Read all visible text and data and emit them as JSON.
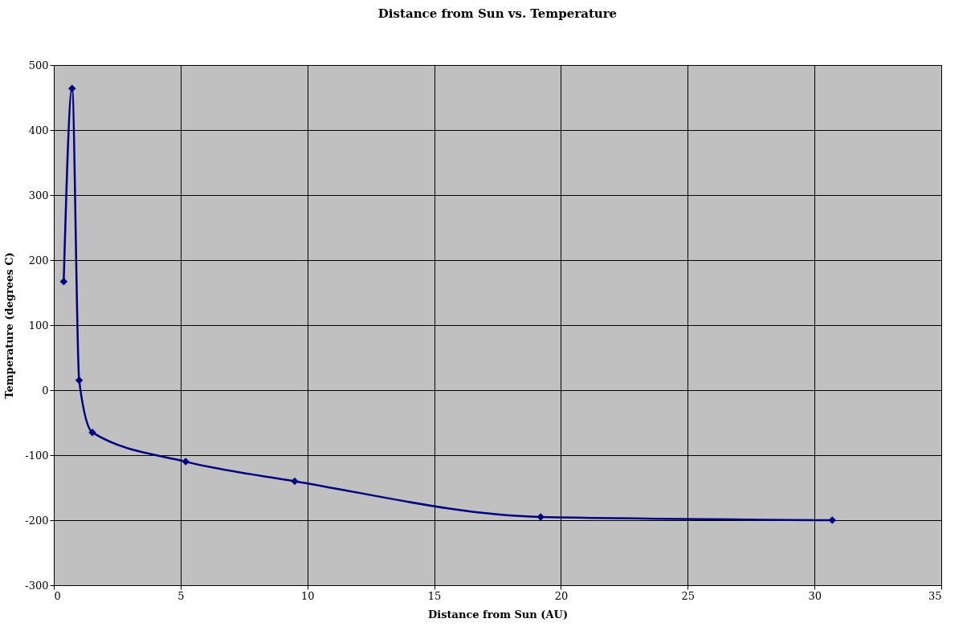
{
  "chart_data": {
    "type": "line",
    "title": "Distance from Sun vs. Temperature",
    "xlabel": "Distance from Sun (AU)",
    "ylabel": "Temperature (degrees C)",
    "x": [
      0.39,
      0.72,
      1.0,
      1.52,
      5.2,
      9.5,
      19.2,
      30.7
    ],
    "series": [
      {
        "color": "#000080",
        "values": [
          167,
          464,
          15,
          -65,
          -110,
          -140,
          -195,
          -200
        ]
      }
    ],
    "xlim": [
      0,
      35
    ],
    "xticks": [
      0,
      5,
      10,
      15,
      20,
      25,
      30,
      35
    ],
    "ylim": [
      -300,
      500
    ],
    "yticks": [
      -300,
      -200,
      -100,
      0,
      100,
      200,
      300,
      400,
      500
    ],
    "grid": true,
    "marker": "diamond",
    "line_style": "solid"
  }
}
